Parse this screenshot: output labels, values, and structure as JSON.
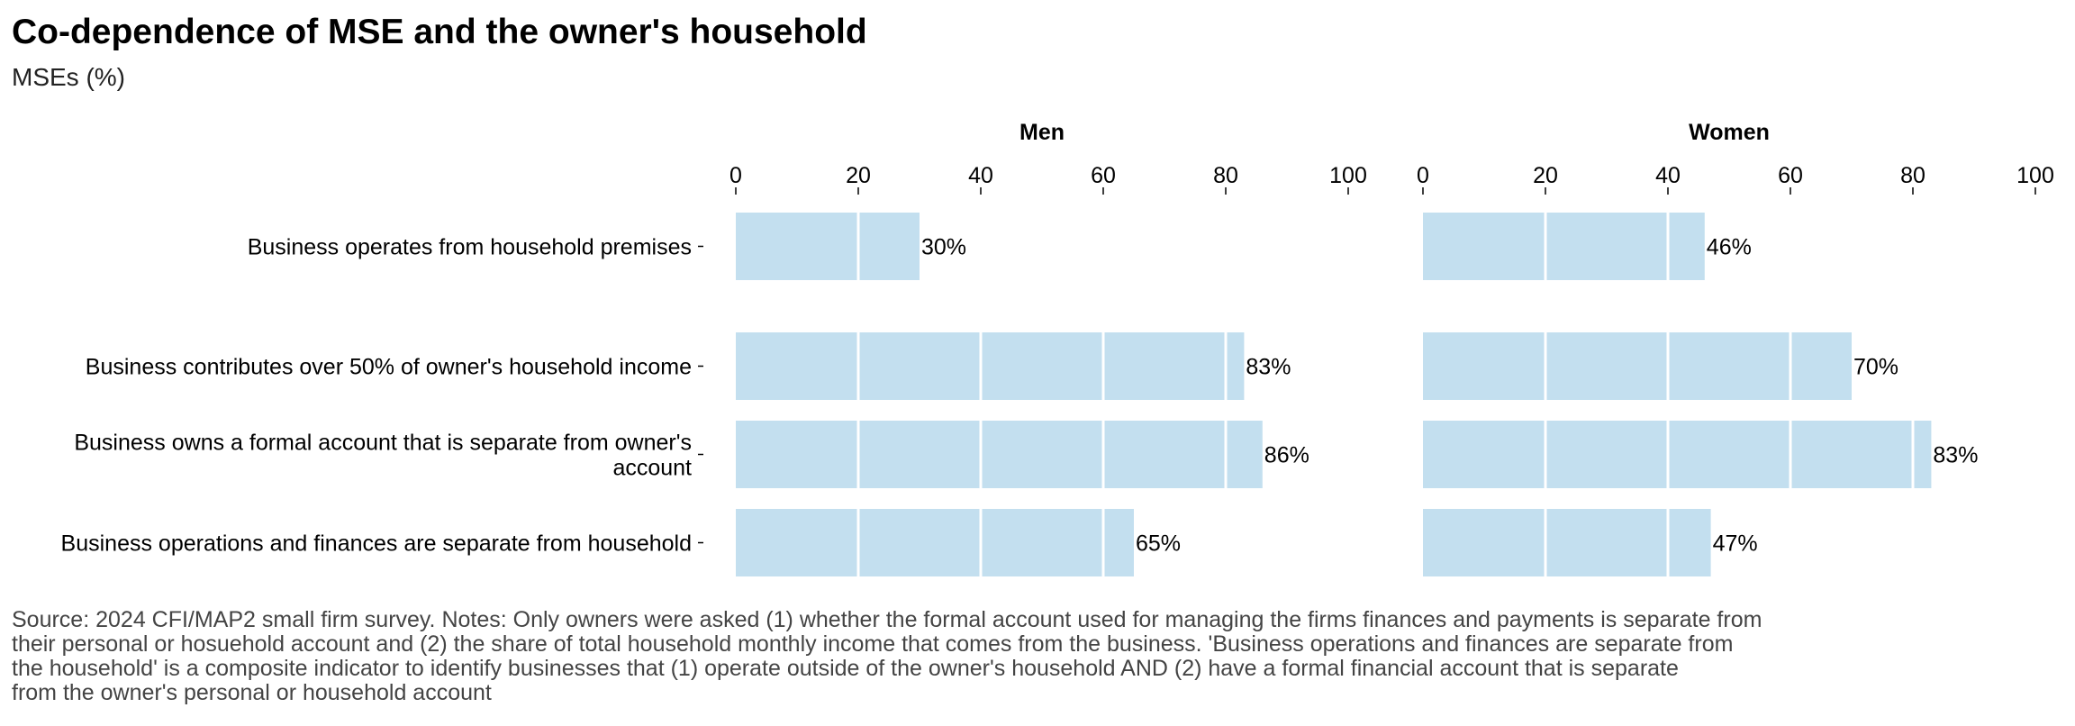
{
  "title": "Co-dependence of MSE and the owner's household",
  "subtitle": "MSEs (%)",
  "chart_data": {
    "type": "bar",
    "orientation": "horizontal",
    "categories": [
      [
        "Business operates from household premises"
      ],
      [
        "Business contributes over 50% of owner's household income"
      ],
      [
        "Business owns a formal account that is separate from owner's",
        "account"
      ],
      [
        "Business operations and finances are separate from household"
      ]
    ],
    "panels": [
      {
        "name": "Men",
        "values": [
          30,
          83,
          86,
          65
        ],
        "labels": [
          "30%",
          "83%",
          "86%",
          "65%"
        ]
      },
      {
        "name": "Women",
        "values": [
          46,
          70,
          83,
          47
        ],
        "labels": [
          "46%",
          "70%",
          "83%",
          "47%"
        ]
      }
    ],
    "xlim": [
      0,
      100
    ],
    "ticks": [
      "0",
      "20",
      "40",
      "60",
      "80",
      "100"
    ],
    "tick_values": [
      0,
      20,
      40,
      60,
      80,
      100
    ],
    "bar_color": "#c3dfef",
    "grid_color": "#ffffff",
    "grid": true,
    "legend": "none"
  },
  "notes": [
    "Source: 2024 CFI/MAP2 small firm survey. Notes: Only owners were asked (1) whether the formal account used for managing the firms finances and payments is separate from",
    "their personal or hosuehold account and (2) the share of total household monthly income that comes from the business. 'Business operations and finances are separate from",
    "the household' is a composite indicator to identify businesses that (1) operate outside of the owner's household AND (2) have a formal financial account that is separate",
    "from the owner's personal or household account"
  ]
}
